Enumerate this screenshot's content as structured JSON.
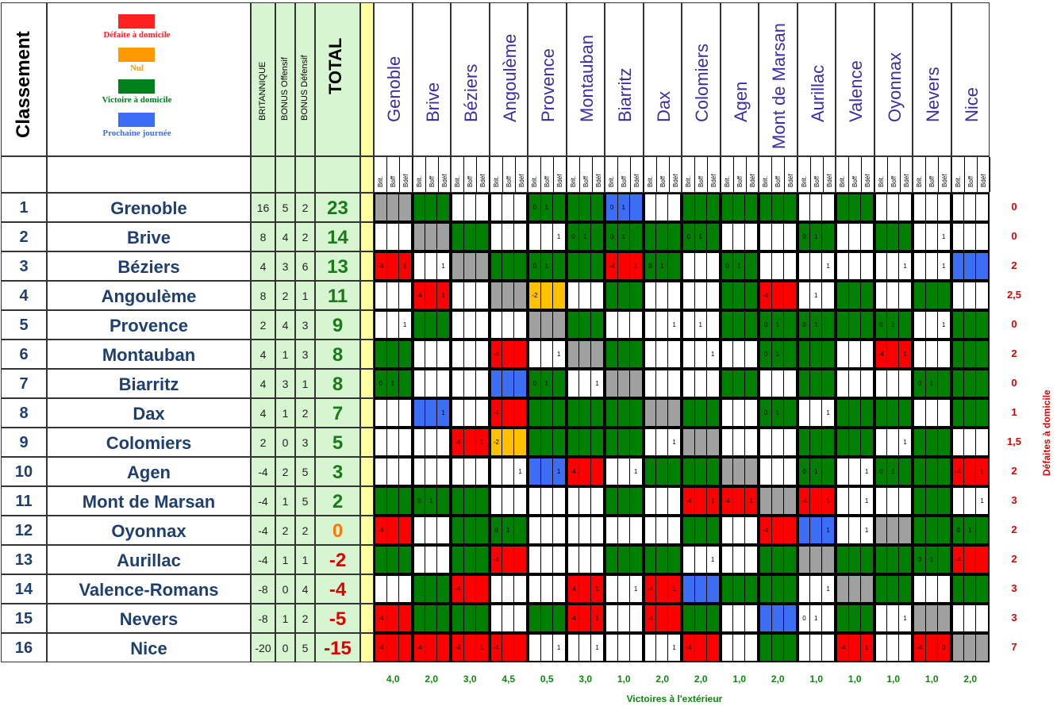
{
  "header": {
    "classement": "Classement",
    "britannique": "BRITANNIQUE",
    "bonus_off": "BONUS Offensif",
    "bonus_def": "BONUS Défensif",
    "total": "TOTAL"
  },
  "legend": [
    {
      "label": "Défaite à domicile",
      "color": "#ff0000"
    },
    {
      "label": "Nul",
      "color": "#ff9900"
    },
    {
      "label": "Victoire à domicile",
      "color": "#008000"
    },
    {
      "label": "Prochaine journée",
      "color": "#3b6df5"
    }
  ],
  "sub_labels": [
    "Brit.",
    "Boff",
    "Bdéf"
  ],
  "columns": [
    "Genoble",
    "Brive",
    "Béziers",
    "Angoulème",
    "Provence",
    "Montauban",
    "Biarritz",
    "Dax",
    "Colomiers",
    "Agen",
    "Mont de Marsan",
    "Aurillac",
    "Valence",
    "Oyonnax",
    "Nevers",
    "Nice"
  ],
  "rows": [
    {
      "rank": "1",
      "team": "Grenoble",
      "brit": "16",
      "boff": "5",
      "bdef": "2",
      "total": "23",
      "total_color": "#1a7a1a"
    },
    {
      "rank": "2",
      "team": "Brive",
      "brit": "8",
      "boff": "4",
      "bdef": "2",
      "total": "14",
      "total_color": "#1a7a1a"
    },
    {
      "rank": "3",
      "team": "Béziers",
      "brit": "4",
      "boff": "3",
      "bdef": "6",
      "total": "13",
      "total_color": "#1a7a1a"
    },
    {
      "rank": "4",
      "team": "Angoulème",
      "brit": "8",
      "boff": "2",
      "bdef": "1",
      "total": "11",
      "total_color": "#1a7a1a"
    },
    {
      "rank": "5",
      "team": "Provence",
      "brit": "2",
      "boff": "4",
      "bdef": "3",
      "total": "9",
      "total_color": "#1a7a1a"
    },
    {
      "rank": "6",
      "team": "Montauban",
      "brit": "4",
      "boff": "1",
      "bdef": "3",
      "total": "8",
      "total_color": "#1a7a1a"
    },
    {
      "rank": "7",
      "team": "Biarritz",
      "brit": "4",
      "boff": "3",
      "bdef": "1",
      "total": "8",
      "total_color": "#1a7a1a"
    },
    {
      "rank": "8",
      "team": "Dax",
      "brit": "4",
      "boff": "1",
      "bdef": "2",
      "total": "7",
      "total_color": "#1a7a1a"
    },
    {
      "rank": "9",
      "team": "Colomiers",
      "brit": "2",
      "boff": "0",
      "bdef": "3",
      "total": "5",
      "total_color": "#1a7a1a"
    },
    {
      "rank": "10",
      "team": "Agen",
      "brit": "-4",
      "boff": "2",
      "bdef": "5",
      "total": "3",
      "total_color": "#1a7a1a"
    },
    {
      "rank": "11",
      "team": "Mont de Marsan",
      "brit": "-4",
      "boff": "1",
      "bdef": "5",
      "total": "2",
      "total_color": "#1a7a1a"
    },
    {
      "rank": "12",
      "team": "Oyonnax",
      "brit": "-4",
      "boff": "2",
      "bdef": "2",
      "total": "0",
      "total_color": "#ff7700"
    },
    {
      "rank": "13",
      "team": "Aurillac",
      "brit": "-4",
      "boff": "1",
      "bdef": "1",
      "total": "-2",
      "total_color": "#e00000"
    },
    {
      "rank": "14",
      "team": "Valence-Romans",
      "brit": "-8",
      "boff": "0",
      "bdef": "4",
      "total": "-4",
      "total_color": "#e00000"
    },
    {
      "rank": "15",
      "team": "Nevers",
      "brit": "-8",
      "boff": "1",
      "bdef": "2",
      "total": "-5",
      "total_color": "#e00000"
    },
    {
      "rank": "16",
      "team": "Nice",
      "brit": "-20",
      "boff": "0",
      "bdef": "5",
      "total": "-15",
      "total_color": "#e00000"
    }
  ],
  "colors": {
    "R": "#ff0000",
    "O": "#ffc000",
    "G": "#008000",
    "B": "#3b6df5",
    "X": "#a0a0a0",
    "W": "#ffffff"
  },
  "grid": [
    [
      "X",
      "G",
      "W",
      "W",
      "G",
      "G",
      "B",
      "W",
      "G",
      "G",
      "G",
      "W",
      "G",
      "W",
      "W",
      "W"
    ],
    [
      "W",
      "X",
      "G",
      "W",
      "W",
      "G",
      "G",
      "G",
      "G",
      "W",
      "W",
      "G",
      "W",
      "G",
      "W",
      "W"
    ],
    [
      "R",
      "W",
      "X",
      "G",
      "G",
      "G",
      "R",
      "G",
      "W",
      "G",
      "W",
      "W",
      "W",
      "W",
      "W",
      "B"
    ],
    [
      "W",
      "R",
      "W",
      "X",
      "O",
      "W",
      "G",
      "W",
      "W",
      "G",
      "R",
      "W",
      "G",
      "W",
      "G",
      "W"
    ],
    [
      "W",
      "G",
      "W",
      "W",
      "X",
      "G",
      "W",
      "W",
      "W",
      "G",
      "G",
      "G",
      "G",
      "G",
      "W",
      "G"
    ],
    [
      "G",
      "W",
      "W",
      "R",
      "W",
      "X",
      "G",
      "W",
      "W",
      "W",
      "G",
      "G",
      "W",
      "R",
      "W",
      "G"
    ],
    [
      "G",
      "W",
      "W",
      "B",
      "G",
      "W",
      "X",
      "W",
      "W",
      "G",
      "W",
      "G",
      "W",
      "W",
      "G",
      "G"
    ],
    [
      "W",
      "B",
      "W",
      "R",
      "G",
      "G",
      "G",
      "X",
      "G",
      "W",
      "G",
      "W",
      "G",
      "G",
      "W",
      "G"
    ],
    [
      "W",
      "W",
      "R",
      "O",
      "G",
      "G",
      "G",
      "W",
      "X",
      "W",
      "W",
      "G",
      "G",
      "W",
      "G",
      "W"
    ],
    [
      "W",
      "W",
      "W",
      "W",
      "B",
      "R",
      "W",
      "G",
      "G",
      "X",
      "W",
      "G",
      "W",
      "G",
      "G",
      "R"
    ],
    [
      "G",
      "G",
      "G",
      "W",
      "W",
      "W",
      "G",
      "W",
      "R",
      "R",
      "X",
      "R",
      "W",
      "W",
      "G",
      "W"
    ],
    [
      "R",
      "W",
      "G",
      "G",
      "W",
      "W",
      "W",
      "W",
      "G",
      "W",
      "R",
      "B",
      "W",
      "X",
      "G",
      "G"
    ],
    [
      "G",
      "W",
      "G",
      "R",
      "W",
      "W",
      "G",
      "G",
      "W",
      "W",
      "G",
      "X",
      "G",
      "G",
      "G",
      "R"
    ],
    [
      "W",
      "G",
      "R",
      "W",
      "W",
      "R",
      "W",
      "R",
      "B",
      "G",
      "G",
      "W",
      "X",
      "G",
      "W",
      "G"
    ],
    [
      "R",
      "G",
      "G",
      "W",
      "G",
      "R",
      "W",
      "R",
      "G",
      "W",
      "B",
      "W",
      "G",
      "W",
      "X",
      "W"
    ],
    [
      "R",
      "R",
      "R",
      "R",
      "W",
      "W",
      "W",
      "W",
      "R",
      "W",
      "G",
      "W",
      "R",
      "W",
      "R",
      "X"
    ]
  ],
  "cell_text": [
    [
      "",
      "",
      "",
      "",
      "0|1|",
      "",
      "0|1|",
      "",
      "",
      "",
      "",
      "",
      "",
      "",
      "",
      ""
    ],
    [
      "",
      "",
      "",
      "",
      "||1",
      "0|1|",
      "0|1|",
      "",
      "0|1|",
      "",
      "",
      "0|1|",
      "",
      "",
      "||1",
      ""
    ],
    [
      "-4||1",
      "||1",
      "",
      "",
      "0|1|",
      "",
      "-4||1",
      "0|1|",
      "",
      "0|1|",
      "",
      "||1",
      "",
      "||1",
      "||1",
      ""
    ],
    [
      "",
      "-4||1",
      "",
      "",
      "-2||",
      "",
      "",
      "",
      "",
      "",
      "-4||",
      "|1|",
      "",
      "",
      "",
      ""
    ],
    [
      "||1",
      "",
      "",
      "",
      "",
      "",
      "",
      "||1",
      "|1|",
      "",
      "0|1|",
      "0|1|",
      "",
      "0|1|",
      "||1",
      ""
    ],
    [
      "",
      "",
      "",
      "-4||",
      "||1",
      "",
      "",
      "",
      "||1",
      "",
      "0|1|",
      "",
      "",
      "-4||1",
      "",
      ""
    ],
    [
      "0|1|",
      "",
      "",
      "",
      "0|1|",
      "||1",
      "",
      "",
      "",
      "",
      "",
      "",
      "",
      "",
      "0|1|",
      ""
    ],
    [
      "",
      "||1",
      "",
      "-4||",
      "",
      "",
      "",
      "",
      "",
      "",
      "0|1|",
      "||1",
      "",
      "",
      "",
      ""
    ],
    [
      "",
      "",
      "-4||1",
      "-2||",
      "",
      "",
      "",
      "||1",
      "",
      "",
      "",
      "",
      "",
      "||1",
      "",
      ""
    ],
    [
      "",
      "",
      "",
      "||1",
      "||1",
      "-4||",
      "||1",
      "",
      "",
      "",
      "",
      "0|1|",
      "||1",
      "0|1|",
      "",
      "-4||1"
    ],
    [
      "",
      "0|1|",
      "",
      "",
      "",
      "",
      "",
      "",
      "-4||1",
      "-4||1",
      "",
      "-4||1",
      "||1",
      "",
      "",
      "||1"
    ],
    [
      "-4||",
      "",
      "",
      "0|1|",
      "",
      "",
      "",
      "",
      "",
      "",
      "-4||",
      "||1",
      "||1",
      "",
      "",
      "0|1|"
    ],
    [
      "",
      "",
      "",
      "-4||",
      "",
      "",
      "",
      "",
      "||1",
      "",
      "",
      "",
      "",
      "",
      "0|1|",
      "-4||"
    ],
    [
      "",
      "",
      "-4||",
      "",
      "",
      "-4||1",
      "||1",
      "-4||1",
      "",
      "",
      "",
      "||1",
      "",
      "",
      "",
      ""
    ],
    [
      "-4||",
      "",
      "",
      "",
      "",
      "-4||1",
      "",
      "-4||",
      "",
      "",
      "",
      "0|1|",
      "",
      "||1",
      "",
      ""
    ],
    [
      "-4||",
      "-4||",
      "-4||1",
      "-4||",
      "||1",
      "||1",
      "",
      "||1",
      "-4||",
      "",
      "",
      "",
      "-4||1",
      "",
      "-4||0",
      ""
    ]
  ],
  "defaites_domicile": [
    "0",
    "0",
    "2",
    "2,5",
    "0",
    "2",
    "0",
    "1",
    "1,5",
    "2",
    "3",
    "2",
    "2",
    "3",
    "3",
    "7"
  ],
  "defaites_label": "Défaites à domicile",
  "victoires_ext": [
    "4,0",
    "2,0",
    "3,0",
    "4,5",
    "0,5",
    "3,0",
    "1,0",
    "2,0",
    "2,0",
    "1,0",
    "2,0",
    "1,0",
    "1,0",
    "1,0",
    "1,0",
    "2,0"
  ],
  "victoires_label": "Victoires à l'extérieur"
}
